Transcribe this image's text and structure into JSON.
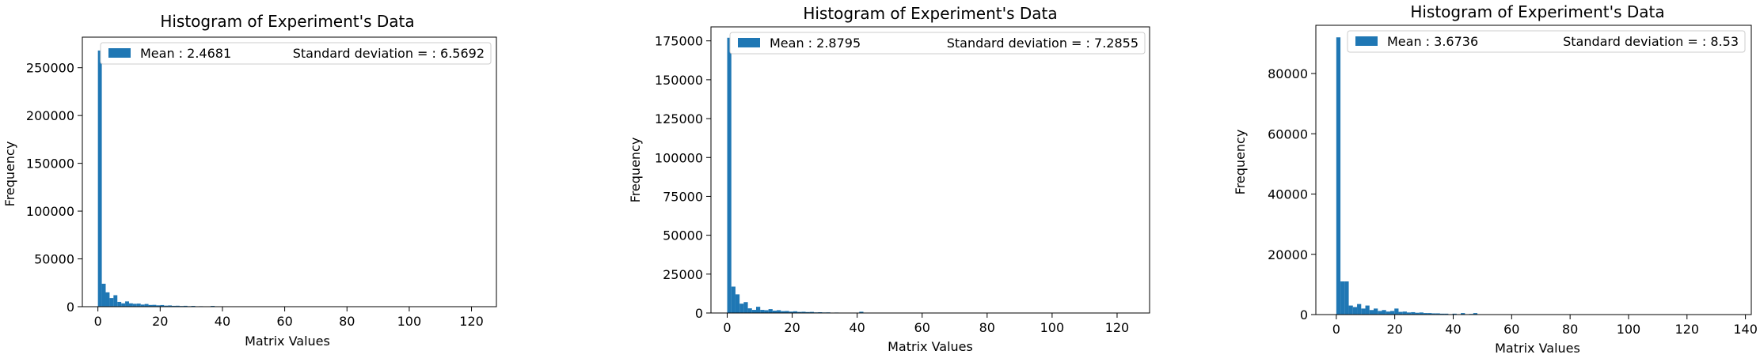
{
  "chart_data": [
    {
      "type": "bar",
      "title": "Histogram of Experiment's Data",
      "xlabel": "Matrix Values",
      "ylabel": "Frequency",
      "xlim": [
        -5,
        128
      ],
      "ylim": [
        0,
        282000
      ],
      "xticks": [
        0,
        20,
        40,
        60,
        80,
        100,
        120
      ],
      "yticks": [
        0,
        50000,
        100000,
        150000,
        200000,
        250000
      ],
      "bin_width": 1.25,
      "color": "#1f77b4",
      "legend": {
        "placement": "top",
        "series_label": "Mean : 2.4681",
        "extra_label": "Standard deviation = : 6.5692"
      },
      "bins": [
        [
          0,
          268000
        ],
        [
          1.25,
          24000
        ],
        [
          2.5,
          15000
        ],
        [
          3.75,
          9000
        ],
        [
          5,
          12000
        ],
        [
          6.25,
          5000
        ],
        [
          7.5,
          3500
        ],
        [
          8.75,
          5500
        ],
        [
          10,
          3500
        ],
        [
          11.25,
          3000
        ],
        [
          12.5,
          3200
        ],
        [
          13.75,
          2200
        ],
        [
          15,
          2800
        ],
        [
          16.25,
          1800
        ],
        [
          17.5,
          1900
        ],
        [
          18.75,
          1400
        ],
        [
          20,
          1700
        ],
        [
          21.25,
          1100
        ],
        [
          22.5,
          1300
        ],
        [
          23.75,
          900
        ],
        [
          25,
          1000
        ],
        [
          26.25,
          700
        ],
        [
          27.5,
          900
        ],
        [
          28.75,
          500
        ],
        [
          30,
          800
        ],
        [
          31.25,
          400
        ],
        [
          32.5,
          500
        ],
        [
          33.75,
          300
        ],
        [
          35,
          400
        ],
        [
          36.25,
          800
        ],
        [
          37.5,
          200
        ],
        [
          40,
          200
        ],
        [
          42.5,
          150
        ]
      ]
    },
    {
      "type": "bar",
      "title": "Histogram of Experiment's Data",
      "xlabel": "Matrix Values",
      "ylabel": "Frequency",
      "xlim": [
        -5,
        130
      ],
      "ylim": [
        0,
        184000
      ],
      "xticks": [
        0,
        20,
        40,
        60,
        80,
        100,
        120
      ],
      "yticks": [
        0,
        25000,
        50000,
        75000,
        100000,
        125000,
        150000,
        175000
      ],
      "bin_width": 1.27,
      "color": "#1f77b4",
      "legend": {
        "placement": "top",
        "series_label": "Mean : 2.8795",
        "extra_label": "Standard deviation = : 7.2855"
      },
      "bins": [
        [
          0,
          177000
        ],
        [
          1.27,
          17000
        ],
        [
          2.54,
          12000
        ],
        [
          3.81,
          6000
        ],
        [
          5.08,
          7000
        ],
        [
          6.35,
          3000
        ],
        [
          7.62,
          2000
        ],
        [
          8.89,
          4000
        ],
        [
          10.16,
          2000
        ],
        [
          11.43,
          1800
        ],
        [
          12.7,
          2500
        ],
        [
          13.97,
          1500
        ],
        [
          15.24,
          1800
        ],
        [
          16.51,
          1200
        ],
        [
          17.78,
          1300
        ],
        [
          19.05,
          900
        ],
        [
          20.32,
          1100
        ],
        [
          21.59,
          700
        ],
        [
          22.86,
          800
        ],
        [
          24.13,
          600
        ],
        [
          25.4,
          700
        ],
        [
          26.67,
          400
        ],
        [
          27.94,
          500
        ],
        [
          29.21,
          350
        ],
        [
          30.48,
          400
        ],
        [
          31.75,
          250
        ],
        [
          33.02,
          300
        ],
        [
          34.29,
          200
        ],
        [
          38.1,
          250
        ],
        [
          40.64,
          800
        ],
        [
          43.18,
          200
        ]
      ]
    },
    {
      "type": "bar",
      "title": "Histogram of Experiment's Data",
      "xlabel": "Matrix Values",
      "ylabel": "Frequency",
      "xlim": [
        -7,
        142
      ],
      "ylim": [
        0,
        96000
      ],
      "xticks": [
        0,
        20,
        40,
        60,
        80,
        100,
        120,
        140
      ],
      "yticks": [
        0,
        20000,
        40000,
        60000,
        80000
      ],
      "bin_width": 1.42,
      "color": "#1f77b4",
      "legend": {
        "placement": "top",
        "series_label": "Mean : 3.6736",
        "extra_label": "Standard deviation = : 8.53"
      },
      "bins": [
        [
          0,
          92000
        ],
        [
          1.42,
          11000
        ],
        [
          2.84,
          11000
        ],
        [
          4.26,
          3000
        ],
        [
          5.68,
          2500
        ],
        [
          7.1,
          3500
        ],
        [
          8.52,
          2000
        ],
        [
          9.94,
          3000
        ],
        [
          11.36,
          1500
        ],
        [
          12.78,
          2000
        ],
        [
          14.2,
          1200
        ],
        [
          15.62,
          1500
        ],
        [
          17.04,
          1000
        ],
        [
          18.46,
          1200
        ],
        [
          19.88,
          2000
        ],
        [
          21.3,
          900
        ],
        [
          22.72,
          1000
        ],
        [
          24.14,
          700
        ],
        [
          25.56,
          800
        ],
        [
          26.98,
          600
        ],
        [
          28.4,
          700
        ],
        [
          29.82,
          500
        ],
        [
          31.24,
          500
        ],
        [
          32.66,
          400
        ],
        [
          34.08,
          400
        ],
        [
          35.5,
          300
        ],
        [
          36.92,
          300
        ],
        [
          39.76,
          300
        ],
        [
          42.6,
          500
        ],
        [
          45.44,
          200
        ],
        [
          46.86,
          500
        ]
      ]
    }
  ]
}
